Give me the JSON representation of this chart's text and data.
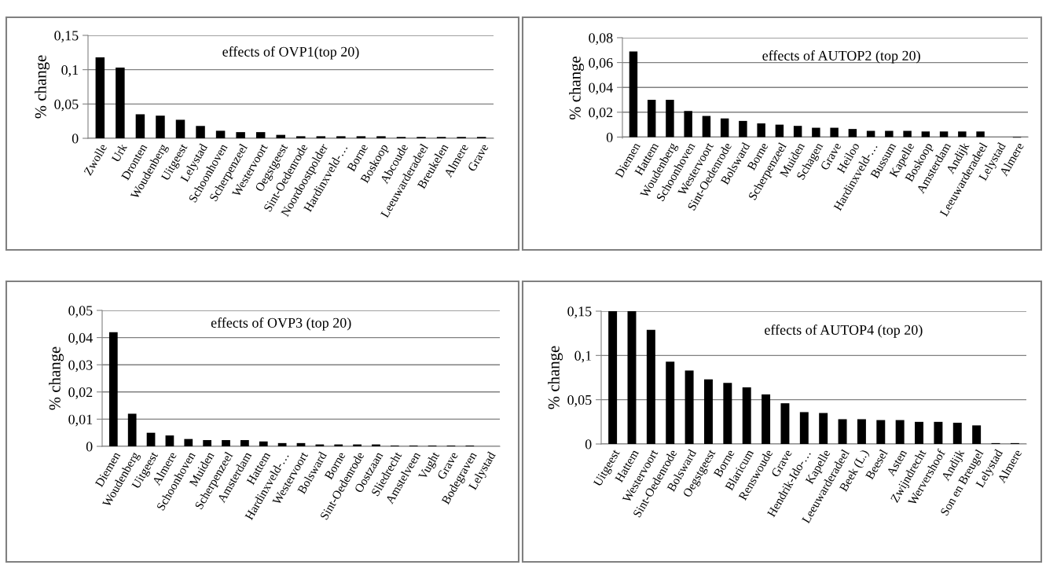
{
  "chart_data": [
    {
      "type": "bar",
      "title": "effects of OVP1(top 20)",
      "ylabel": "% change",
      "color": "#000000",
      "grid": "y",
      "categories": [
        "Zwolle",
        "Urk",
        "Dronten",
        "Woudenberg",
        "Uitgeest",
        "Lelystad",
        "Schoonhoven",
        "Scherpenzeel",
        "Westervoort",
        "Oegstgeest",
        "Sint-Oedenrode",
        "Noordoostpolder",
        "Hardinxveld-…",
        "Borne",
        "Boskoop",
        "Abcoude",
        "Leeuwarderadeel",
        "Breukelen",
        "Almere",
        "Grave"
      ],
      "values": [
        0.118,
        0.103,
        0.035,
        0.033,
        0.027,
        0.018,
        0.011,
        0.009,
        0.009,
        0.005,
        0.003,
        0.003,
        0.003,
        0.003,
        0.003,
        0.002,
        0.002,
        0.002,
        0.002,
        0.002
      ],
      "ylim": [
        0,
        0.15
      ],
      "yticks": [
        0,
        {
          "value": 0.05,
          "label": "0,05"
        },
        {
          "value": 0.1,
          "label": "0,1"
        },
        {
          "value": 0.15,
          "label": "0,15"
        }
      ]
    },
    {
      "type": "bar",
      "title": "effects of AUTOP2 (top 20)",
      "ylabel": "% change",
      "color": "#000000",
      "grid": "y",
      "categories": [
        "Diemen",
        "Hattem",
        "Woudenberg",
        "Schoonhoven",
        "Westervoort",
        "Sint-Oedenrode",
        "Bolsward",
        "Borne",
        "Scherpenzeel",
        "Muiden",
        "Schagen",
        "Grave",
        "Heiloo",
        "Hardinxveld-…",
        "Bussum",
        "Kapelle",
        "Boskoop",
        "Amsterdam",
        "Andijk",
        "Leeuwarderadeel",
        "Lelystad",
        "Almere"
      ],
      "values": [
        0.069,
        0.03,
        0.03,
        0.021,
        0.017,
        0.015,
        0.013,
        0.011,
        0.01,
        0.009,
        0.0075,
        0.0075,
        0.0065,
        0.005,
        0.005,
        0.005,
        0.0045,
        0.0045,
        0.0045,
        0.0045,
        0,
        -0.0005
      ],
      "ylim": [
        -0.001,
        0.08
      ],
      "yticks": [
        0,
        {
          "value": 0.02,
          "label": "0,02"
        },
        {
          "value": 0.04,
          "label": "0,04"
        },
        {
          "value": 0.06,
          "label": "0,06"
        },
        {
          "value": 0.08,
          "label": "0,08"
        }
      ]
    },
    {
      "type": "bar",
      "title": "effects of OVP3 (top 20)",
      "ylabel": "% change",
      "color": "#000000",
      "grid": "y",
      "categories": [
        "Diemen",
        "Woudenberg",
        "Uitgeest",
        "Almere",
        "Schoonhoven",
        "Muiden",
        "Scherpenzeel",
        "Amsterdam",
        "Hattem",
        "Hardinxveld-…",
        "Westervoort",
        "Bolsward",
        "Borne",
        "Sint-Oedenrode",
        "Oostzaan",
        "Sliedrecht",
        "Amstelveen",
        "Vught",
        "Grave",
        "Bodegraven",
        "Lelystad"
      ],
      "values": [
        0.042,
        0.012,
        0.005,
        0.004,
        0.0027,
        0.0023,
        0.0023,
        0.0023,
        0.0018,
        0.0012,
        0.0012,
        0.0007,
        0.0007,
        0.0007,
        0.0007,
        0.0003,
        0.0003,
        0.0003,
        0.0003,
        0.0003,
        0
      ],
      "ylim": [
        0,
        0.05
      ],
      "yticks": [
        0,
        {
          "value": 0.01,
          "label": "0,01"
        },
        {
          "value": 0.02,
          "label": "0,02"
        },
        {
          "value": 0.03,
          "label": "0,03"
        },
        {
          "value": 0.04,
          "label": "0,04"
        },
        {
          "value": 0.05,
          "label": "0,05"
        }
      ]
    },
    {
      "type": "bar",
      "title": "effects of AUTOP4 (top 20)",
      "ylabel": "% change",
      "color": "#000000",
      "grid": "y",
      "categories": [
        "Uitgeest",
        "Hattem",
        "Westervoort",
        "Sint-Oedenrode",
        "Bolsward",
        "Oegstgeest",
        "Borne",
        "Blaricum",
        "Renswoude",
        "Grave",
        "Hendrik-Ido-…",
        "Kapelle",
        "Leeuwarderadeel",
        "Beek (L.)",
        "Beesel",
        "Asten",
        "Zwijndrecht",
        "Wervershoof",
        "Andijk",
        "Son en Breugel",
        "Lelystad",
        "Almere"
      ],
      "values": [
        0.15,
        0.15,
        0.129,
        0.093,
        0.083,
        0.073,
        0.069,
        0.064,
        0.056,
        0.046,
        0.036,
        0.035,
        0.028,
        0.028,
        0.027,
        0.027,
        0.025,
        0.025,
        0.024,
        0.021,
        0.001,
        0.001
      ],
      "ylim": [
        0,
        0.15
      ],
      "yticks": [
        0,
        {
          "value": 0.05,
          "label": "0,05"
        },
        {
          "value": 0.1,
          "label": "0,1"
        },
        {
          "value": 0.15,
          "label": "0,15"
        }
      ]
    }
  ]
}
